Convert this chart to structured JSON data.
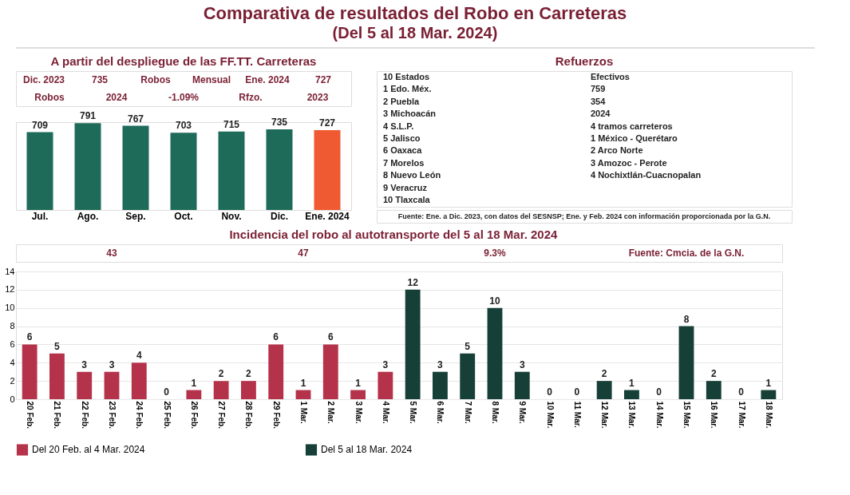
{
  "chart_data": [
    {
      "type": "other",
      "title": "Comparativa de resultados del Robo en Carreteras",
      "subtitle": "(Del 5 al 18 Mar. 2024)"
    },
    {
      "type": "bar",
      "title": "A partir del despliegue de las FF.TT. Carreteras",
      "categories": [
        "Jul.",
        "Ago.",
        "Sep.",
        "Oct.",
        "Nov.",
        "Dic.",
        "Ene. 2024"
      ],
      "values": [
        709,
        791,
        767,
        703,
        715,
        735,
        727
      ],
      "colors": [
        "#1f6b5a",
        "#1f6b5a",
        "#1f6b5a",
        "#1f6b5a",
        "#1f6b5a",
        "#1f6b5a",
        "#f05a32"
      ],
      "data_labels": true,
      "annotations": [
        "Dic. 2023",
        "735",
        "Robos",
        "Mensual",
        "Ene. 2024",
        "727",
        "Robos",
        "2024",
        "-1.09%",
        "Rfzo.",
        "2023"
      ]
    },
    {
      "type": "other",
      "title": "Refuerzos",
      "annotations": [
        "10 Estados",
        "1 Edo. Méx.",
        "2 Puebla",
        "3 Michoacán",
        "4 S.L.P.",
        "5 Jalisco",
        "6 Oaxaca",
        "7 Morelos",
        "8 Nuevo León",
        "9 Veracruz",
        "10 Tlaxcala",
        "Efectivos",
        "759",
        "354",
        "2024",
        "4 tramos carreteros",
        "1 México - Querétaro",
        "2 Arco Norte",
        "3 Amozoc - Perote",
        "4 Nochixtlán-Cuacnopalan",
        "Fuente: Ene. a Dic. 2023, con datos del SESNSP; Ene. y Feb. 2024 con información proporcionada por la G.N."
      ]
    },
    {
      "type": "bar",
      "title": "Incidencia del robo al autotransporte del 5 al 18 Mar. 2024",
      "categories": [
        "20 Feb.",
        "21 Feb.",
        "22 Feb.",
        "23 Feb.",
        "24 Feb.",
        "25 Feb.",
        "26 Feb.",
        "27 Feb.",
        "28 Feb.",
        "29 Feb.",
        "1 Mar.",
        "2 Mar.",
        "3 Mar.",
        "4 Mar.",
        "5 Mar.",
        "6 Mar.",
        "7 Mar.",
        "8 Mar.",
        "9 Mar.",
        "10 Mar.",
        "11 Mar.",
        "12 Mar.",
        "13 Mar.",
        "14 Mar.",
        "15 Mar.",
        "16 Mar.",
        "17 Mar.",
        "18 Mar."
      ],
      "series": [
        {
          "name": "Del 20 Feb. al 4 Mar. 2024",
          "color": "#b5334a",
          "values": [
            6,
            5,
            3,
            3,
            4,
            0,
            1,
            2,
            2,
            6,
            1,
            6,
            1,
            3,
            null,
            null,
            null,
            null,
            null,
            null,
            null,
            null,
            null,
            null,
            null,
            null,
            null,
            null
          ]
        },
        {
          "name": "Del 5 al 18 Mar. 2024",
          "color": "#163f38",
          "values": [
            null,
            null,
            null,
            null,
            null,
            null,
            null,
            null,
            null,
            null,
            null,
            null,
            null,
            null,
            12,
            3,
            5,
            10,
            3,
            0,
            0,
            2,
            1,
            0,
            8,
            2,
            0,
            1
          ]
        }
      ],
      "ylim": [
        0,
        14
      ],
      "yticks": [
        0,
        2,
        4,
        6,
        8,
        10,
        12,
        14
      ],
      "grid": "y",
      "data_labels": true,
      "legend": "bottom",
      "annotations": [
        "43",
        "47",
        "9.3%",
        "Fuente: Cmcia. de la G.N."
      ]
    }
  ]
}
